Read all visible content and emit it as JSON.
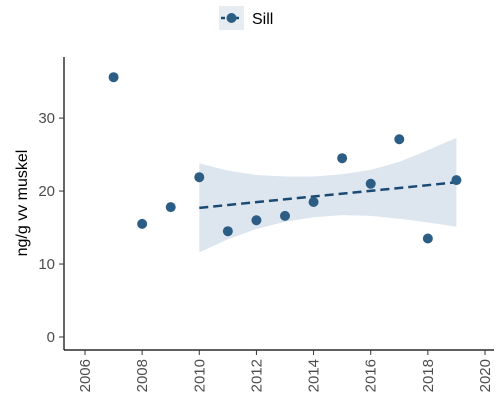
{
  "chart_data": {
    "type": "scatter",
    "ylabel": "ng/g vv muskel",
    "xlim": [
      2006,
      2020
    ],
    "ylim": [
      0,
      37
    ],
    "x_ticks": [
      2006,
      2008,
      2010,
      2012,
      2014,
      2016,
      2018,
      2020
    ],
    "y_ticks": [
      0,
      10,
      20,
      30
    ],
    "grid": false,
    "legend_position": "top",
    "series": [
      {
        "name": "Sill",
        "color": "#2c5d84",
        "points": [
          {
            "x": 2007,
            "y": 35.6
          },
          {
            "x": 2008,
            "y": 15.5
          },
          {
            "x": 2009,
            "y": 17.8
          },
          {
            "x": 2010,
            "y": 21.9
          },
          {
            "x": 2011,
            "y": 14.5
          },
          {
            "x": 2012,
            "y": 16.0
          },
          {
            "x": 2013,
            "y": 16.6
          },
          {
            "x": 2014,
            "y": 18.5
          },
          {
            "x": 2015,
            "y": 24.5
          },
          {
            "x": 2016,
            "y": 21.0
          },
          {
            "x": 2017,
            "y": 27.1
          },
          {
            "x": 2018,
            "y": 13.5
          },
          {
            "x": 2019,
            "y": 21.5
          }
        ]
      }
    ],
    "trend": {
      "type": "dashed-line",
      "color": "#1a4a73",
      "line": [
        {
          "x": 2010,
          "y": 17.7
        },
        {
          "x": 2019,
          "y": 21.2
        }
      ],
      "band_color": "#dde5ee",
      "band_upper": [
        {
          "x": 2010,
          "y": 23.8
        },
        {
          "x": 2011,
          "y": 22.8
        },
        {
          "x": 2012,
          "y": 22.2
        },
        {
          "x": 2013,
          "y": 22.0
        },
        {
          "x": 2014,
          "y": 22.0
        },
        {
          "x": 2015,
          "y": 22.3
        },
        {
          "x": 2016,
          "y": 22.9
        },
        {
          "x": 2017,
          "y": 24.0
        },
        {
          "x": 2018,
          "y": 25.6
        },
        {
          "x": 2019,
          "y": 27.3
        }
      ],
      "band_lower": [
        {
          "x": 2010,
          "y": 11.6
        },
        {
          "x": 2011,
          "y": 13.4
        },
        {
          "x": 2012,
          "y": 14.8
        },
        {
          "x": 2013,
          "y": 15.8
        },
        {
          "x": 2014,
          "y": 16.4
        },
        {
          "x": 2015,
          "y": 16.7
        },
        {
          "x": 2016,
          "y": 16.6
        },
        {
          "x": 2017,
          "y": 16.2
        },
        {
          "x": 2018,
          "y": 15.7
        },
        {
          "x": 2019,
          "y": 15.1
        }
      ]
    }
  }
}
